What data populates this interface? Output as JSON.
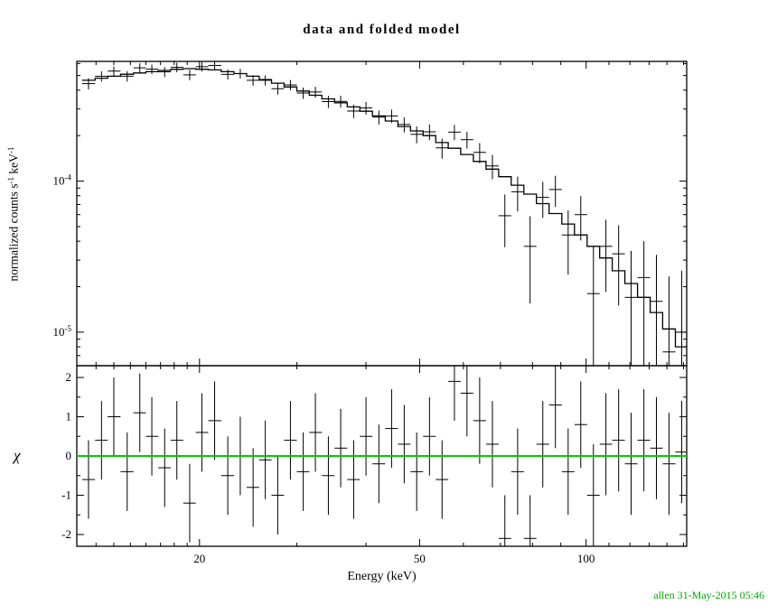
{
  "colors": {
    "foreground": "#000000",
    "zero_line": "#00cc00",
    "timestamp": "#00aa00"
  },
  "chart_data": {
    "type": "scatter",
    "title": "data and folded model",
    "xlabel": "Energy (keV)",
    "annotation": "allen 31-May-2015 05:46",
    "xscale": "log",
    "xlim": [
      12,
      152
    ],
    "xticks": [
      20,
      50,
      100
    ],
    "xticks_minor": [
      13,
      14,
      15,
      16,
      17,
      18,
      19,
      30,
      40,
      60,
      70,
      80,
      90,
      110,
      120,
      130,
      140,
      150
    ],
    "x": [
      12.6,
      13.3,
      14.0,
      14.8,
      15.6,
      16.4,
      17.3,
      18.2,
      19.2,
      20.2,
      21.3,
      22.5,
      23.7,
      25.0,
      26.3,
      27.7,
      29.2,
      30.8,
      32.4,
      34.2,
      36.0,
      38.0,
      40.0,
      42.2,
      44.5,
      46.9,
      49.4,
      52.1,
      54.9,
      57.8,
      60.9,
      64.2,
      67.7,
      71.3,
      75.2,
      79.2,
      83.5,
      88.0,
      92.8,
      97.8,
      103.1,
      108.6,
      114.5,
      120.6,
      127.2,
      134.0,
      141.2,
      148.9
    ],
    "panels": [
      {
        "name": "spectrum",
        "ylabel": "normalized counts s^-1 keV^-1",
        "yscale": "log",
        "ylim": [
          6e-06,
          0.00062
        ],
        "yticks": [
          {
            "v": 0.0001,
            "exp": "-4"
          },
          {
            "v": 1e-05,
            "exp": "-5"
          }
        ],
        "yticks_minor": [
          7e-06,
          8e-06,
          9e-06,
          2e-05,
          3e-05,
          4e-05,
          5e-05,
          6e-05,
          7e-05,
          8e-05,
          9e-05,
          0.0002,
          0.0003,
          0.0004,
          0.0005,
          0.0006
        ],
        "series": [
          {
            "name": "data",
            "style": "errorbar-cross",
            "color": "#000000",
            "y": [
              0.000442,
              0.000494,
              0.000535,
              0.000495,
              0.000562,
              0.000551,
              0.000529,
              0.000567,
              0.000505,
              0.000572,
              0.000583,
              0.000509,
              0.000515,
              0.000465,
              0.000465,
              0.000409,
              0.000433,
              0.000383,
              0.000389,
              0.000336,
              0.000337,
              0.000291,
              0.000305,
              0.000265,
              0.00027,
              0.000237,
              0.000204,
              0.000212,
              0.000166,
              0.000211,
              0.000188,
              0.000155,
              0.000126,
              5.9e-05,
              8.5e-05,
              3.7e-05,
              7.8e-05,
              8.8e-05,
              4.4e-05,
              6e-05,
              1.8e-05,
              3.7e-05,
              3.3e-05,
              1.7e-05,
              2.3e-05,
              1.6e-05,
              7.4e-06,
              1e-05
            ],
            "yerr": [
              3.8e-05,
              3.8e-05,
              3.9e-05,
              3.9e-05,
              4e-05,
              4e-05,
              4e-05,
              4.1e-05,
              4e-05,
              4e-05,
              4e-05,
              3.9e-05,
              3.8e-05,
              3.7e-05,
              3.6e-05,
              3.5e-05,
              3.4e-05,
              3.3e-05,
              3.2e-05,
              3.1e-05,
              3e-05,
              2.95e-05,
              2.9e-05,
              2.8e-05,
              2.75e-05,
              2.7e-05,
              2.6e-05,
              2.55e-05,
              2.5e-05,
              2.45e-05,
              2.4e-05,
              2.35e-05,
              2.3e-05,
              2.25e-05,
              2.2e-05,
              2.15e-05,
              2.1e-05,
              2.05e-05,
              2e-05,
              1.95e-05,
              1.9e-05,
              1.85e-05,
              1.8e-05,
              1.75e-05,
              1.7e-05,
              1.65e-05,
              1.6e-05,
              1.55e-05
            ]
          },
          {
            "name": "folded model",
            "style": "histogram-step",
            "color": "#000000",
            "y": [
              0.000465,
              0.00048,
              0.000495,
              0.00051,
              0.00052,
              0.00053,
              0.00054,
              0.00055,
              0.000555,
              0.00055,
              0.000545,
              0.00053,
              0.000515,
              0.000495,
              0.00047,
              0.000445,
              0.00042,
              0.000395,
              0.00037,
              0.00035,
              0.00033,
              0.00031,
              0.00029,
              0.00027,
              0.00025,
              0.00023,
              0.000215,
              0.0002,
              0.00018,
              0.000165,
              0.00015,
              0.000135,
              0.00012,
              0.000107,
              9.4e-05,
              8.2e-05,
              7.1e-05,
              6.1e-05,
              5.2e-05,
              4.4e-05,
              3.7e-05,
              3.1e-05,
              2.55e-05,
              2.1e-05,
              1.7e-05,
              1.35e-05,
              1.05e-05,
              8e-06
            ]
          }
        ]
      },
      {
        "name": "residuals",
        "ylabel": "χ",
        "yscale": "linear",
        "ylim": [
          -2.3,
          2.3
        ],
        "yticks": [
          -2,
          -1,
          0,
          1,
          2
        ],
        "yticks_minor": [
          -1.5,
          -0.5,
          0.5,
          1.5
        ],
        "series": [
          {
            "name": "chi residuals",
            "style": "errorbar-cross",
            "color": "#000000",
            "y": [
              -0.6,
              0.4,
              1.0,
              -0.4,
              1.1,
              0.5,
              -0.3,
              0.4,
              -1.2,
              0.6,
              0.9,
              -0.5,
              0.0,
              -0.8,
              -0.1,
              -1.0,
              0.4,
              -0.4,
              0.6,
              -0.5,
              0.2,
              -0.6,
              0.5,
              -0.2,
              0.7,
              0.3,
              -0.4,
              0.5,
              -0.6,
              1.9,
              1.6,
              0.9,
              0.3,
              -2.1,
              -0.4,
              -2.1,
              0.3,
              1.3,
              -0.4,
              0.8,
              -1.0,
              0.3,
              0.4,
              -0.2,
              0.4,
              0.2,
              -0.2,
              0.1
            ],
            "yerr": [
              1.0,
              1.0,
              1.0,
              1.0,
              1.0,
              1.0,
              1.0,
              1.0,
              1.0,
              1.0,
              1.0,
              1.0,
              1.0,
              1.0,
              1.0,
              1.0,
              1.0,
              1.0,
              1.0,
              1.0,
              1.0,
              1.0,
              1.0,
              1.0,
              1.0,
              1.0,
              1.0,
              1.0,
              1.0,
              1.0,
              1.1,
              1.1,
              1.1,
              1.1,
              1.1,
              1.1,
              1.1,
              1.1,
              1.1,
              1.1,
              1.3,
              1.3,
              1.3,
              1.3,
              1.3,
              1.3,
              1.3,
              1.3
            ]
          },
          {
            "name": "zero line",
            "style": "hline",
            "color": "#00cc00",
            "y": 0
          }
        ]
      }
    ]
  }
}
